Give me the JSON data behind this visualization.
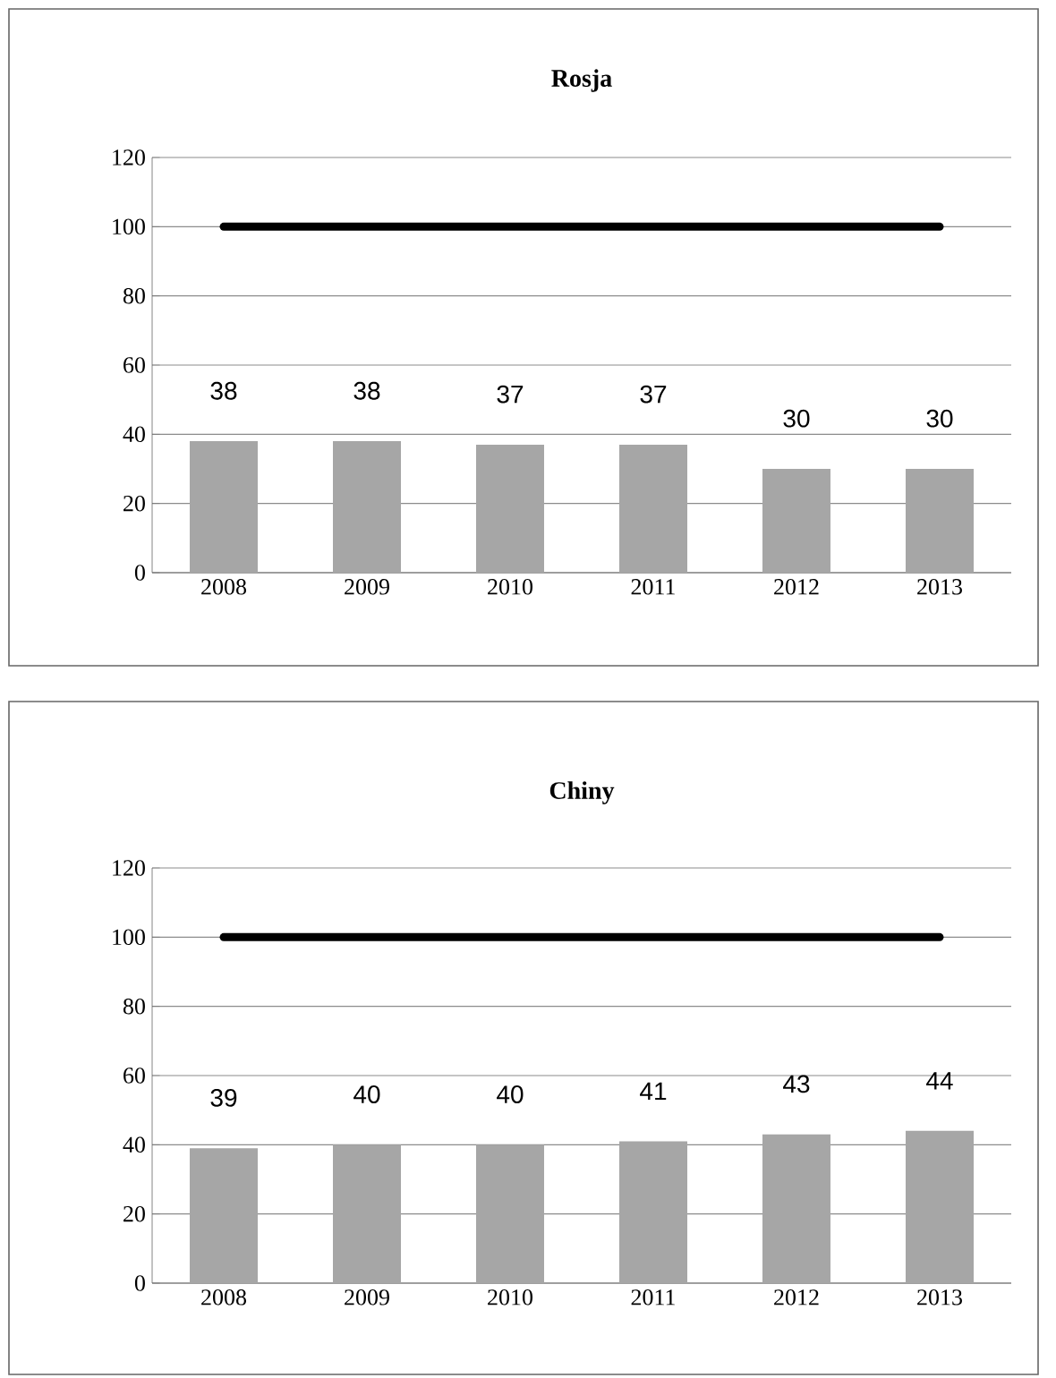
{
  "chart_data": [
    {
      "type": "bar",
      "title": "Rosja",
      "categories": [
        "2008",
        "2009",
        "2010",
        "2011",
        "2012",
        "2013"
      ],
      "series": [
        {
          "color": "#a6a6a6",
          "values": [
            38,
            38,
            37,
            37,
            30,
            30
          ],
          "value_labels": [
            "38",
            "38",
            "37",
            "37",
            "30",
            "30"
          ]
        },
        {
          "type": "line",
          "color": "#000000",
          "values": [
            100,
            100,
            100,
            100,
            100,
            100
          ]
        }
      ],
      "ylim": [
        0,
        120
      ],
      "yticks": [
        0,
        20,
        40,
        60,
        80,
        100,
        120
      ],
      "grid": "y"
    },
    {
      "type": "bar",
      "title": "Chiny",
      "categories": [
        "2008",
        "2009",
        "2010",
        "2011",
        "2012",
        "2013"
      ],
      "series": [
        {
          "color": "#a6a6a6",
          "values": [
            39,
            40,
            40,
            41,
            43,
            44
          ],
          "value_labels": [
            "39",
            "40",
            "40",
            "41",
            "43",
            "44"
          ]
        },
        {
          "type": "line",
          "color": "#000000",
          "values": [
            100,
            100,
            100,
            100,
            100,
            100
          ]
        }
      ],
      "ylim": [
        0,
        120
      ],
      "yticks": [
        0,
        20,
        40,
        60,
        80,
        100,
        120
      ],
      "grid": "y"
    }
  ]
}
